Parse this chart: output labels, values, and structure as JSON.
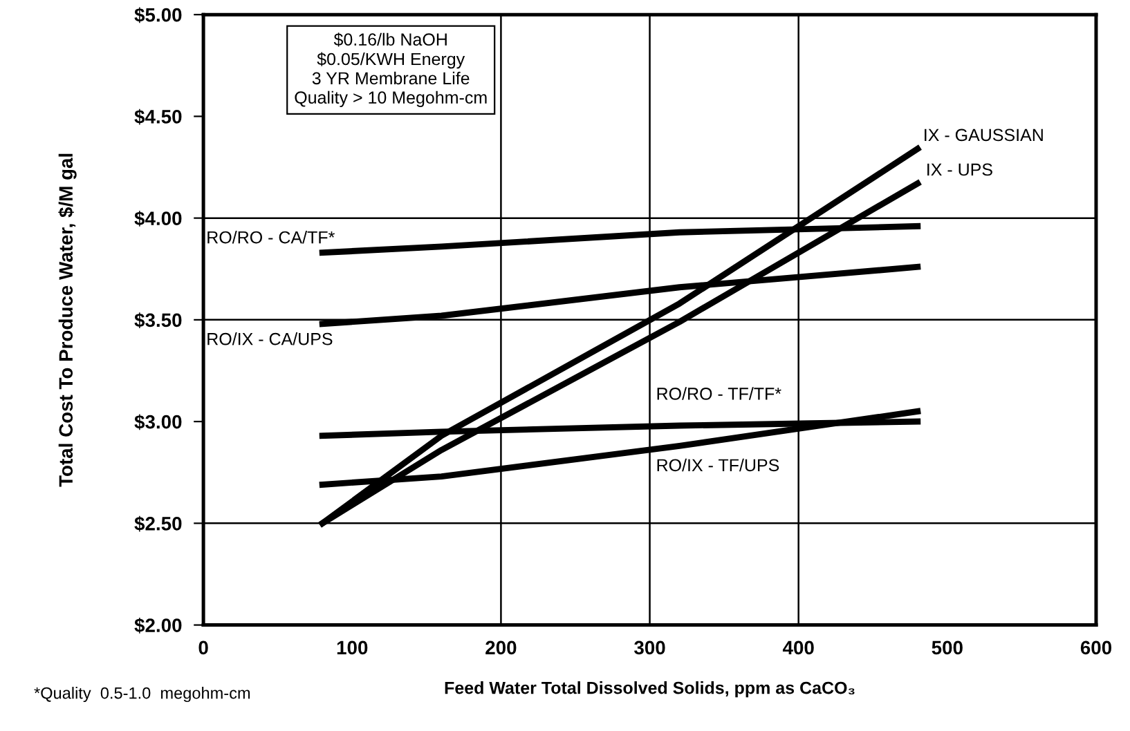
{
  "chart_data": {
    "type": "line",
    "xlabel": "Feed Water Total Dissolved Solids, ppm as CaCO₃",
    "ylabel": "Total Cost To Produce Water, $/M gal",
    "x": [
      80,
      160,
      320,
      480
    ],
    "series": [
      {
        "color": "#000000",
        "values": [
          3.83,
          3.86,
          3.93,
          3.96
        ]
      },
      {
        "color": "#000000",
        "values": [
          3.48,
          3.52,
          3.66,
          3.76
        ]
      },
      {
        "color": "#000000",
        "values": [
          2.5,
          2.93,
          3.58,
          4.34
        ]
      },
      {
        "color": "#000000",
        "values": [
          2.5,
          2.86,
          3.49,
          4.17
        ]
      },
      {
        "color": "#000000",
        "values": [
          2.93,
          2.95,
          2.98,
          3.0
        ]
      },
      {
        "color": "#000000",
        "values": [
          2.69,
          2.73,
          2.88,
          3.05
        ]
      }
    ],
    "xlim": [
      0,
      600
    ],
    "ylim": [
      2.0,
      5.0
    ],
    "xticks": [
      0,
      100,
      200,
      300,
      400,
      500,
      600
    ],
    "yticks": [
      {
        "value": 2.0,
        "label": "$2.00"
      },
      {
        "value": 2.5,
        "label": "$2.50"
      },
      {
        "value": 3.0,
        "label": "$3.00"
      },
      {
        "value": 3.5,
        "label": "$3.50"
      },
      {
        "value": 4.0,
        "label": "$4.00"
      },
      {
        "value": 4.5,
        "label": "$4.50"
      },
      {
        "value": 5.0,
        "label": "$5.00"
      }
    ],
    "ref_lines": [
      {
        "axis": "y",
        "value": 2.5,
        "color": "#000000"
      },
      {
        "axis": "y",
        "value": 3.5,
        "color": "#000000"
      },
      {
        "axis": "y",
        "value": 4.0,
        "color": "#000000"
      },
      {
        "axis": "x",
        "value": 200,
        "color": "#000000"
      },
      {
        "axis": "x",
        "value": 300,
        "color": "#000000"
      },
      {
        "axis": "x",
        "value": 400,
        "color": "#000000"
      }
    ],
    "marker": "none",
    "line_style": "solid",
    "annotations": [
      "$0.16/lb NaOH\n$0.05/KWH Energy\n3 YR Membrane Life\nQuality > 10 Megohm-cm",
      "*Quality  0.5-1.0  megohm-cm",
      {
        "text": "IX - GAUSSIAN",
        "x": 480,
        "y": 4.34
      },
      {
        "text": "IX - UPS",
        "x": 480,
        "y": 4.17
      },
      {
        "text": "RO/RO - CA/TF*",
        "x": 80,
        "y": 3.83
      },
      {
        "text": "RO/IX - CA/UPS",
        "x": 80,
        "y": 3.48
      },
      {
        "text": "RO/RO - TF/TF*",
        "x": 320,
        "y": 2.98
      },
      {
        "text": "RO/IX - TF/UPS",
        "x": 320,
        "y": 2.88
      }
    ]
  }
}
